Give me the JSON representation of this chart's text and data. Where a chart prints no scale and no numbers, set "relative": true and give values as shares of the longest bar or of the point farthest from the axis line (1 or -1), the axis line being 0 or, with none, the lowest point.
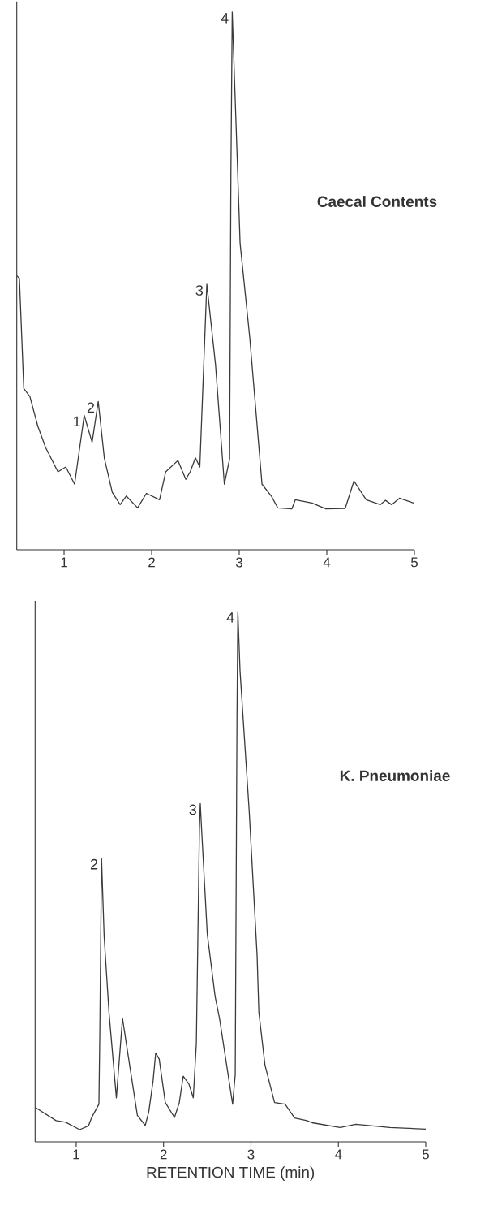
{
  "chart_data": [
    {
      "type": "line",
      "title": "Caecal Contents",
      "relative": true,
      "color": "#3a3a3a",
      "xlim": [
        0.46,
        5
      ],
      "xticks": [
        1,
        2,
        3,
        4,
        5
      ],
      "x": [
        0.46,
        0.49,
        0.54,
        0.61,
        0.7,
        0.79,
        0.93,
        1.02,
        1.12,
        1.23,
        1.32,
        1.39,
        1.46,
        1.55,
        1.64,
        1.71,
        1.84,
        1.94,
        2.09,
        2.16,
        2.3,
        2.39,
        2.44,
        2.5,
        2.55,
        2.63,
        2.73,
        2.83,
        2.89,
        2.905,
        2.92,
        3.01,
        3.12,
        3.26,
        3.37,
        3.44,
        3.6,
        3.64,
        3.83,
        3.99,
        4.21,
        4.31,
        4.45,
        4.61,
        4.67,
        4.74,
        4.83,
        4.99
      ],
      "values": [
        0.51,
        0.505,
        0.3,
        0.285,
        0.23,
        0.19,
        0.145,
        0.154,
        0.122,
        0.25,
        0.2,
        0.276,
        0.17,
        0.107,
        0.084,
        0.1,
        0.078,
        0.105,
        0.093,
        0.145,
        0.166,
        0.131,
        0.145,
        0.171,
        0.154,
        0.494,
        0.343,
        0.122,
        0.169,
        0.7,
        1.0,
        0.57,
        0.395,
        0.122,
        0.099,
        0.078,
        0.076,
        0.093,
        0.087,
        0.076,
        0.077,
        0.128,
        0.093,
        0.084,
        0.092,
        0.084,
        0.096,
        0.087
      ],
      "annotations": [
        {
          "text": "1",
          "x": 1.23,
          "y": 0.25
        },
        {
          "text": "2",
          "x": 1.39,
          "y": 0.276
        },
        {
          "text": "3",
          "x": 2.63,
          "y": 0.494
        },
        {
          "text": "4",
          "x": 2.92,
          "y": 1.0
        }
      ]
    },
    {
      "type": "line",
      "title": "K. Pneumoniae",
      "xlabel": "RETENTION TIME (min)",
      "relative": true,
      "color": "#3a3a3a",
      "xlim": [
        0.53,
        5
      ],
      "xticks": [
        1,
        2,
        3,
        4,
        5
      ],
      "x": [
        0.53,
        0.77,
        0.88,
        1.04,
        1.14,
        1.18,
        1.26,
        1.27,
        1.29,
        1.32,
        1.375,
        1.46,
        1.53,
        1.59,
        1.7,
        1.79,
        1.83,
        1.88,
        1.91,
        1.95,
        2.02,
        2.125,
        2.18,
        2.225,
        2.29,
        2.34,
        2.375,
        2.41,
        2.42,
        2.435,
        2.5,
        2.59,
        2.64,
        2.79,
        2.82,
        2.84,
        2.85,
        2.875,
        2.98,
        3.07,
        3.09,
        3.16,
        3.27,
        3.39,
        3.5,
        3.64,
        3.7,
        4.02,
        4.2,
        4.59,
        5.0
      ],
      "values": [
        0.065,
        0.04,
        0.037,
        0.023,
        0.03,
        0.047,
        0.071,
        0.2,
        0.535,
        0.387,
        0.245,
        0.083,
        0.233,
        0.168,
        0.05,
        0.031,
        0.056,
        0.115,
        0.168,
        0.156,
        0.074,
        0.046,
        0.074,
        0.124,
        0.109,
        0.083,
        0.186,
        0.59,
        0.638,
        0.59,
        0.392,
        0.274,
        0.233,
        0.071,
        0.127,
        0.8,
        1.0,
        0.888,
        0.623,
        0.352,
        0.245,
        0.145,
        0.074,
        0.071,
        0.045,
        0.04,
        0.036,
        0.027,
        0.033,
        0.027,
        0.024
      ],
      "annotations": [
        {
          "text": "2",
          "x": 1.29,
          "y": 0.535
        },
        {
          "text": "3",
          "x": 2.42,
          "y": 0.638
        },
        {
          "text": "4",
          "x": 2.85,
          "y": 1.0
        }
      ]
    }
  ]
}
